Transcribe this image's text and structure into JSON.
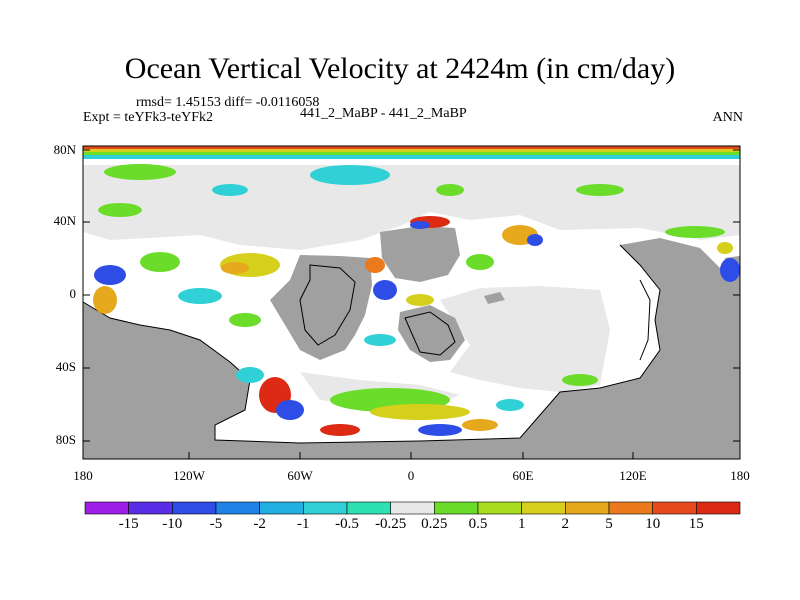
{
  "title": "Ocean Vertical Velocity at 2424m (in cm/day)",
  "stats_line": "rmsd= 1.45153 diff= -0.0116058",
  "experiment_line": "Expt = teYFk3-teYFk2",
  "case_line": "441_2_MaBP - 441_2_MaBP",
  "season": "ANN",
  "lat_labels": [
    "80N",
    "40N",
    "0",
    "40S",
    "80S"
  ],
  "lon_labels": [
    "180",
    "120W",
    "60W",
    "0",
    "60E",
    "120E",
    "180"
  ],
  "colorbar": {
    "labels": [
      "-15",
      "-10",
      "-5",
      "-2",
      "-1",
      "-0.5",
      "-0.25",
      "0.25",
      "0.5",
      "1",
      "2",
      "5",
      "10",
      "15"
    ],
    "colors": [
      "#9d1ee6",
      "#5a2ee6",
      "#2d4de6",
      "#1f82e6",
      "#22b0e3",
      "#2fd0d6",
      "#2ee0b2",
      "#e8e8e8",
      "#6cdc2a",
      "#a8dc1e",
      "#d6d01c",
      "#e6a81c",
      "#ea7a1c",
      "#e64a1c",
      "#dc2a14"
    ]
  },
  "colors": {
    "land": "#a0a0a0",
    "ocean_near_zero": "#e8e8e8",
    "white_region": "#ffffff"
  }
}
